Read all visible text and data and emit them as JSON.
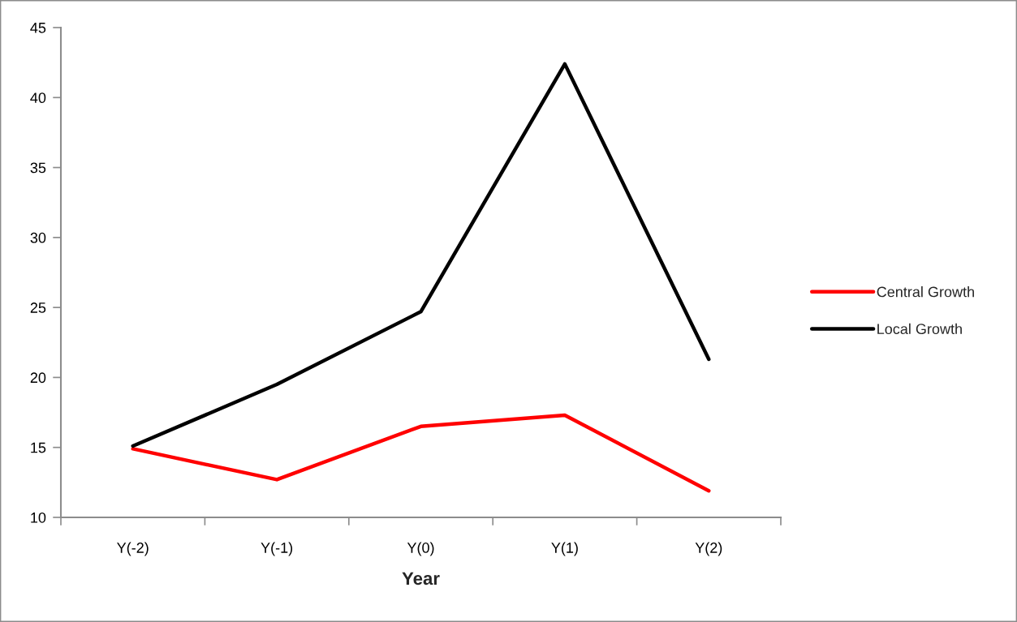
{
  "chart_data": {
    "type": "line",
    "xlabel": "Year",
    "categories": [
      "Y(-2)",
      "Y(-1)",
      "Y(0)",
      "Y(1)",
      "Y(2)"
    ],
    "series": [
      {
        "name": "Central Growth",
        "color": "#ff0000",
        "values": [
          14.9,
          12.7,
          16.5,
          17.3,
          11.9
        ]
      },
      {
        "name": "Local Growth",
        "color": "#000000",
        "values": [
          15.1,
          19.5,
          24.7,
          42.4,
          21.3
        ]
      }
    ],
    "ylim": [
      10,
      45
    ],
    "yticks": [
      10,
      15,
      20,
      25,
      30,
      35,
      40,
      45
    ],
    "legend": "right",
    "marker": "none",
    "line_style": "solid"
  }
}
